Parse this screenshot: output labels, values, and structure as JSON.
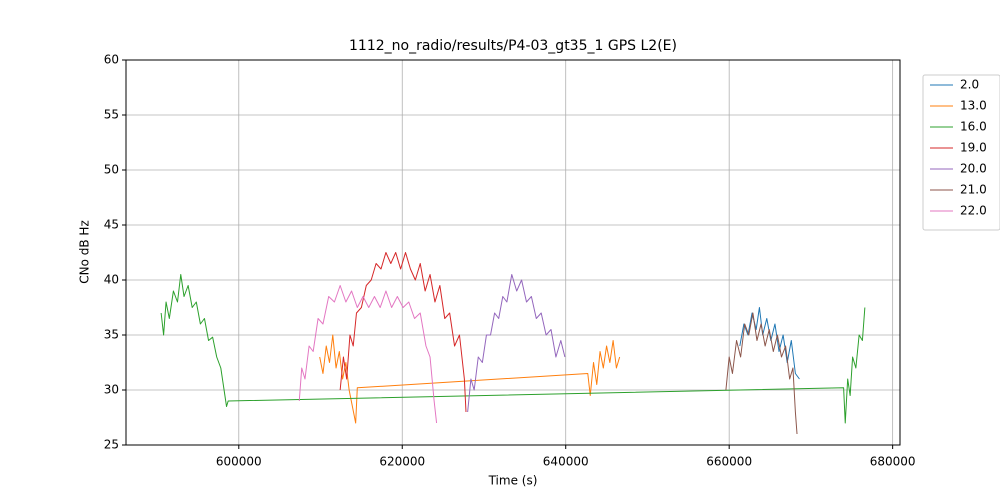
{
  "chart_data": {
    "type": "line",
    "title": "1112_no_radio/results/P4-03_gt35_1 GPS L2(E)",
    "x_label": "Time (s)",
    "y_label": "CNo dB Hz",
    "xlim": [
      586200,
      680900
    ],
    "ylim": [
      25,
      60
    ],
    "xticks": [
      600000,
      620000,
      640000,
      660000,
      680000
    ],
    "yticks": [
      25,
      30,
      35,
      40,
      45,
      50,
      55,
      60
    ],
    "grid": true,
    "legend": "outside right",
    "series": [
      {
        "name": "2.0",
        "color": "#1f77b4",
        "x": [
          661300,
          661800,
          662300,
          662800,
          663300,
          663700,
          664100,
          664600,
          665100,
          665600,
          666100,
          666600,
          667100,
          667600,
          668100,
          668600
        ],
        "values": [
          34,
          36,
          35,
          37,
          35.5,
          37.5,
          35,
          36.5,
          34.5,
          36,
          33.5,
          35,
          32.5,
          34.5,
          31.5,
          31
        ]
      },
      {
        "name": "13.0",
        "color": "#ff7f0e",
        "x": [
          609900,
          610300,
          610700,
          611100,
          611500,
          611900,
          612300,
          612700,
          613100,
          613500,
          613900,
          614300,
          614500,
          642700,
          643000,
          643400,
          643800,
          644200,
          644600,
          645000,
          645400,
          645800,
          646200,
          646600
        ],
        "values": [
          33,
          31.5,
          34,
          32.5,
          35,
          32,
          33.5,
          31,
          32.5,
          30,
          28.5,
          27,
          30.2,
          31.5,
          29.5,
          32.5,
          30.5,
          33.5,
          32,
          34,
          32.5,
          34.5,
          32,
          33
        ]
      },
      {
        "name": "16.0",
        "color": "#2ca02c",
        "x": [
          590500,
          590800,
          591100,
          591500,
          592000,
          592500,
          592900,
          593300,
          593800,
          594300,
          594800,
          595300,
          595800,
          596300,
          596800,
          597300,
          597800,
          598200,
          598500,
          598700,
          674000,
          674200,
          674500,
          674800,
          675100,
          675500,
          675900,
          676300,
          676600
        ],
        "values": [
          37,
          35,
          38,
          36.5,
          39,
          38,
          40.5,
          38.5,
          39.5,
          37.5,
          38,
          36,
          36.5,
          34.5,
          34.8,
          33,
          32,
          30,
          28.5,
          29,
          30.2,
          27,
          31,
          29.5,
          33,
          32,
          35,
          34.5,
          37.5
        ]
      },
      {
        "name": "19.0",
        "color": "#d62728",
        "x": [
          612400,
          612800,
          613200,
          613600,
          614000,
          614400,
          615000,
          615600,
          616200,
          616800,
          617400,
          618000,
          618600,
          619200,
          619800,
          620400,
          621000,
          621600,
          622200,
          622800,
          623400,
          624000,
          624600,
          625200,
          625800,
          626400,
          627000,
          627600,
          627800
        ],
        "values": [
          30,
          33,
          31,
          35,
          34,
          37,
          37.5,
          39.5,
          40,
          41.5,
          41,
          42.5,
          41.5,
          42.5,
          41,
          42.5,
          41,
          40,
          41.5,
          39,
          40.5,
          38,
          39.5,
          36.5,
          37,
          34,
          35,
          31,
          28
        ]
      },
      {
        "name": "20.0",
        "color": "#9467bd",
        "x": [
          628000,
          628400,
          628800,
          629300,
          629800,
          630300,
          630800,
          631300,
          631800,
          632300,
          632800,
          633400,
          634000,
          634600,
          635200,
          635800,
          636400,
          637000,
          637600,
          638200,
          638800,
          639400,
          639900
        ],
        "values": [
          28,
          31,
          30,
          33,
          32.5,
          35,
          35,
          37,
          36.5,
          38.5,
          38,
          40.5,
          39,
          40,
          38,
          38.5,
          36.5,
          37,
          35,
          35.5,
          33,
          34.5,
          33
        ]
      },
      {
        "name": "21.0",
        "color": "#8c564b",
        "x": [
          659600,
          660000,
          660400,
          660900,
          661400,
          661900,
          662400,
          662900,
          663400,
          663900,
          664400,
          664900,
          665400,
          665900,
          666400,
          666900,
          667400,
          667800,
          668100,
          668300
        ],
        "values": [
          30,
          33,
          31.5,
          34.5,
          33,
          36,
          35,
          37,
          34.5,
          36,
          34,
          35.5,
          33.5,
          35,
          33,
          34,
          31,
          32,
          28,
          26
        ]
      },
      {
        "name": "22.0",
        "color": "#e377c2",
        "x": [
          607400,
          607700,
          608100,
          608600,
          609100,
          609700,
          610300,
          611000,
          611700,
          612400,
          613100,
          613800,
          614500,
          615200,
          615900,
          616600,
          617300,
          618000,
          618700,
          619400,
          620100,
          620800,
          621500,
          622200,
          622900,
          623400,
          623900,
          624200
        ],
        "values": [
          29,
          32,
          31,
          34,
          33.5,
          36.5,
          36,
          38.5,
          38,
          39.5,
          38,
          39,
          37.5,
          38.5,
          37.5,
          38.5,
          37.5,
          39,
          37.5,
          38.5,
          37.5,
          38,
          36.5,
          37,
          34,
          33,
          29,
          27
        ]
      }
    ]
  }
}
